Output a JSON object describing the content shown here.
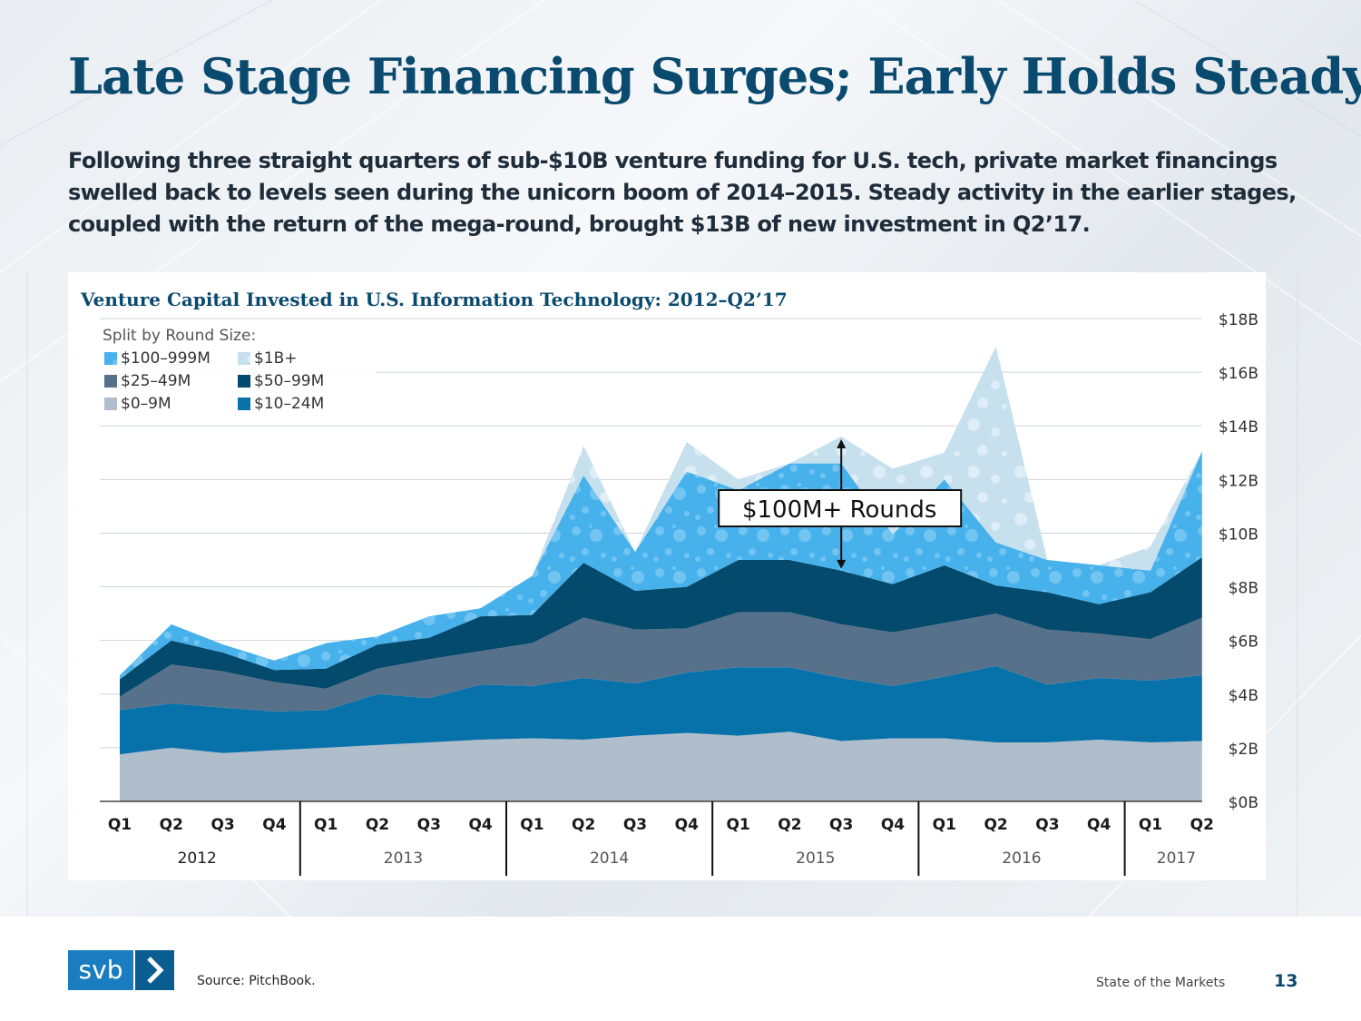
{
  "page": {
    "title": "Late Stage Financing Surges; Early Holds Steady",
    "subtitle": "Following three straight quarters of sub-$10B venture funding for U.S. tech, private market financings swelled back to levels seen during the unicorn boom of 2014–2015. Steady activity in the earlier stages, coupled with the return of the mega-round, brought $13B of new investment in Q2’17.",
    "source": "Source: PitchBook.",
    "footer_label": "State of the Markets",
    "page_number": "13",
    "logo_text": "svb",
    "logo_arrow": "chevron-right-icon"
  },
  "colors": {
    "title": "#0a4a6e",
    "r0_9": "#b0bdca",
    "r10_24": "#0772aa",
    "r25_49": "#58718a",
    "r50_99": "#044a6c",
    "r100_999": "#47b1ec",
    "r1b": "#c6e0ee"
  },
  "chart_data": {
    "type": "area",
    "stacked": true,
    "title": "Venture Capital Invested in U.S. Information Technology: 2012–Q2’17",
    "ylim": [
      0,
      18
    ],
    "yticks": [
      "$0B",
      "$2B",
      "$4B",
      "$6B",
      "$8B",
      "$10B",
      "$12B",
      "$14B",
      "$16B",
      "$18B"
    ],
    "ytick_values": [
      0,
      2,
      4,
      6,
      8,
      10,
      12,
      14,
      16,
      18
    ],
    "quarters": [
      "Q1",
      "Q2",
      "Q3",
      "Q4",
      "Q1",
      "Q2",
      "Q3",
      "Q4",
      "Q1",
      "Q2",
      "Q3",
      "Q4",
      "Q1",
      "Q2",
      "Q3",
      "Q4",
      "Q1",
      "Q2",
      "Q3",
      "Q4",
      "Q1",
      "Q2"
    ],
    "years": [
      {
        "label": "2012",
        "start": 0,
        "end": 3
      },
      {
        "label": "2013",
        "start": 4,
        "end": 7
      },
      {
        "label": "2014",
        "start": 8,
        "end": 11
      },
      {
        "label": "2015",
        "start": 12,
        "end": 15
      },
      {
        "label": "2016",
        "start": 16,
        "end": 19
      },
      {
        "label": "2017",
        "start": 20,
        "end": 21
      }
    ],
    "legend_title": "Split by Round Size:",
    "legend": [
      {
        "label": "$100–999M",
        "key": "r100_999"
      },
      {
        "label": "$1B+",
        "key": "r1b"
      },
      {
        "label": "$25–49M",
        "key": "r25_49"
      },
      {
        "label": "$50–99M",
        "key": "r50_99"
      },
      {
        "label": "$0–9M",
        "key": "r0_9"
      },
      {
        "label": "$10–24M",
        "key": "r10_24"
      }
    ],
    "annotation": "$100M+ Rounds",
    "annotation_index": 14,
    "series": [
      {
        "name": "$0–9M",
        "key": "r0_9",
        "values": [
          1.75,
          2.0,
          1.8,
          1.9,
          2.0,
          2.1,
          2.2,
          2.3,
          2.35,
          2.3,
          2.45,
          2.55,
          2.45,
          2.6,
          2.25,
          2.35,
          2.35,
          2.2,
          2.2,
          2.3,
          2.2,
          2.25
        ]
      },
      {
        "name": "$10–24M",
        "key": "r10_24",
        "values": [
          1.65,
          1.65,
          1.7,
          1.45,
          1.4,
          1.9,
          1.65,
          2.05,
          1.95,
          2.3,
          1.95,
          2.25,
          2.55,
          2.4,
          2.35,
          1.95,
          2.3,
          2.85,
          2.15,
          2.3,
          2.3,
          2.45
        ]
      },
      {
        "name": "$25–49M",
        "key": "r25_49",
        "values": [
          0.5,
          1.45,
          1.35,
          1.1,
          0.8,
          0.95,
          1.45,
          1.25,
          1.6,
          2.25,
          2.0,
          1.65,
          2.05,
          2.05,
          2.0,
          2.0,
          2.0,
          1.95,
          2.05,
          1.65,
          1.55,
          2.15
        ]
      },
      {
        "name": "$50–99M",
        "key": "r50_99",
        "values": [
          0.65,
          0.9,
          0.7,
          0.45,
          0.75,
          0.9,
          0.8,
          1.3,
          1.05,
          2.05,
          1.45,
          1.55,
          1.95,
          1.95,
          2.0,
          1.8,
          2.15,
          1.05,
          1.4,
          1.1,
          1.75,
          2.25
        ]
      },
      {
        "name": "$100–999M",
        "key": "r100_999",
        "values": [
          0.15,
          0.6,
          0.3,
          0.35,
          0.95,
          0.3,
          0.8,
          0.3,
          1.45,
          3.25,
          1.45,
          4.3,
          2.6,
          3.6,
          4.0,
          1.85,
          3.2,
          1.6,
          1.2,
          1.45,
          0.8,
          3.95
        ]
      },
      {
        "name": "$1B+",
        "key": "r1b",
        "values": [
          0.0,
          0.0,
          0.0,
          0.0,
          0.0,
          0.0,
          0.0,
          0.0,
          0.0,
          1.1,
          0.0,
          1.1,
          0.4,
          0.0,
          1.0,
          2.45,
          1.0,
          7.3,
          0.0,
          0.0,
          0.9,
          0.0
        ]
      }
    ]
  }
}
